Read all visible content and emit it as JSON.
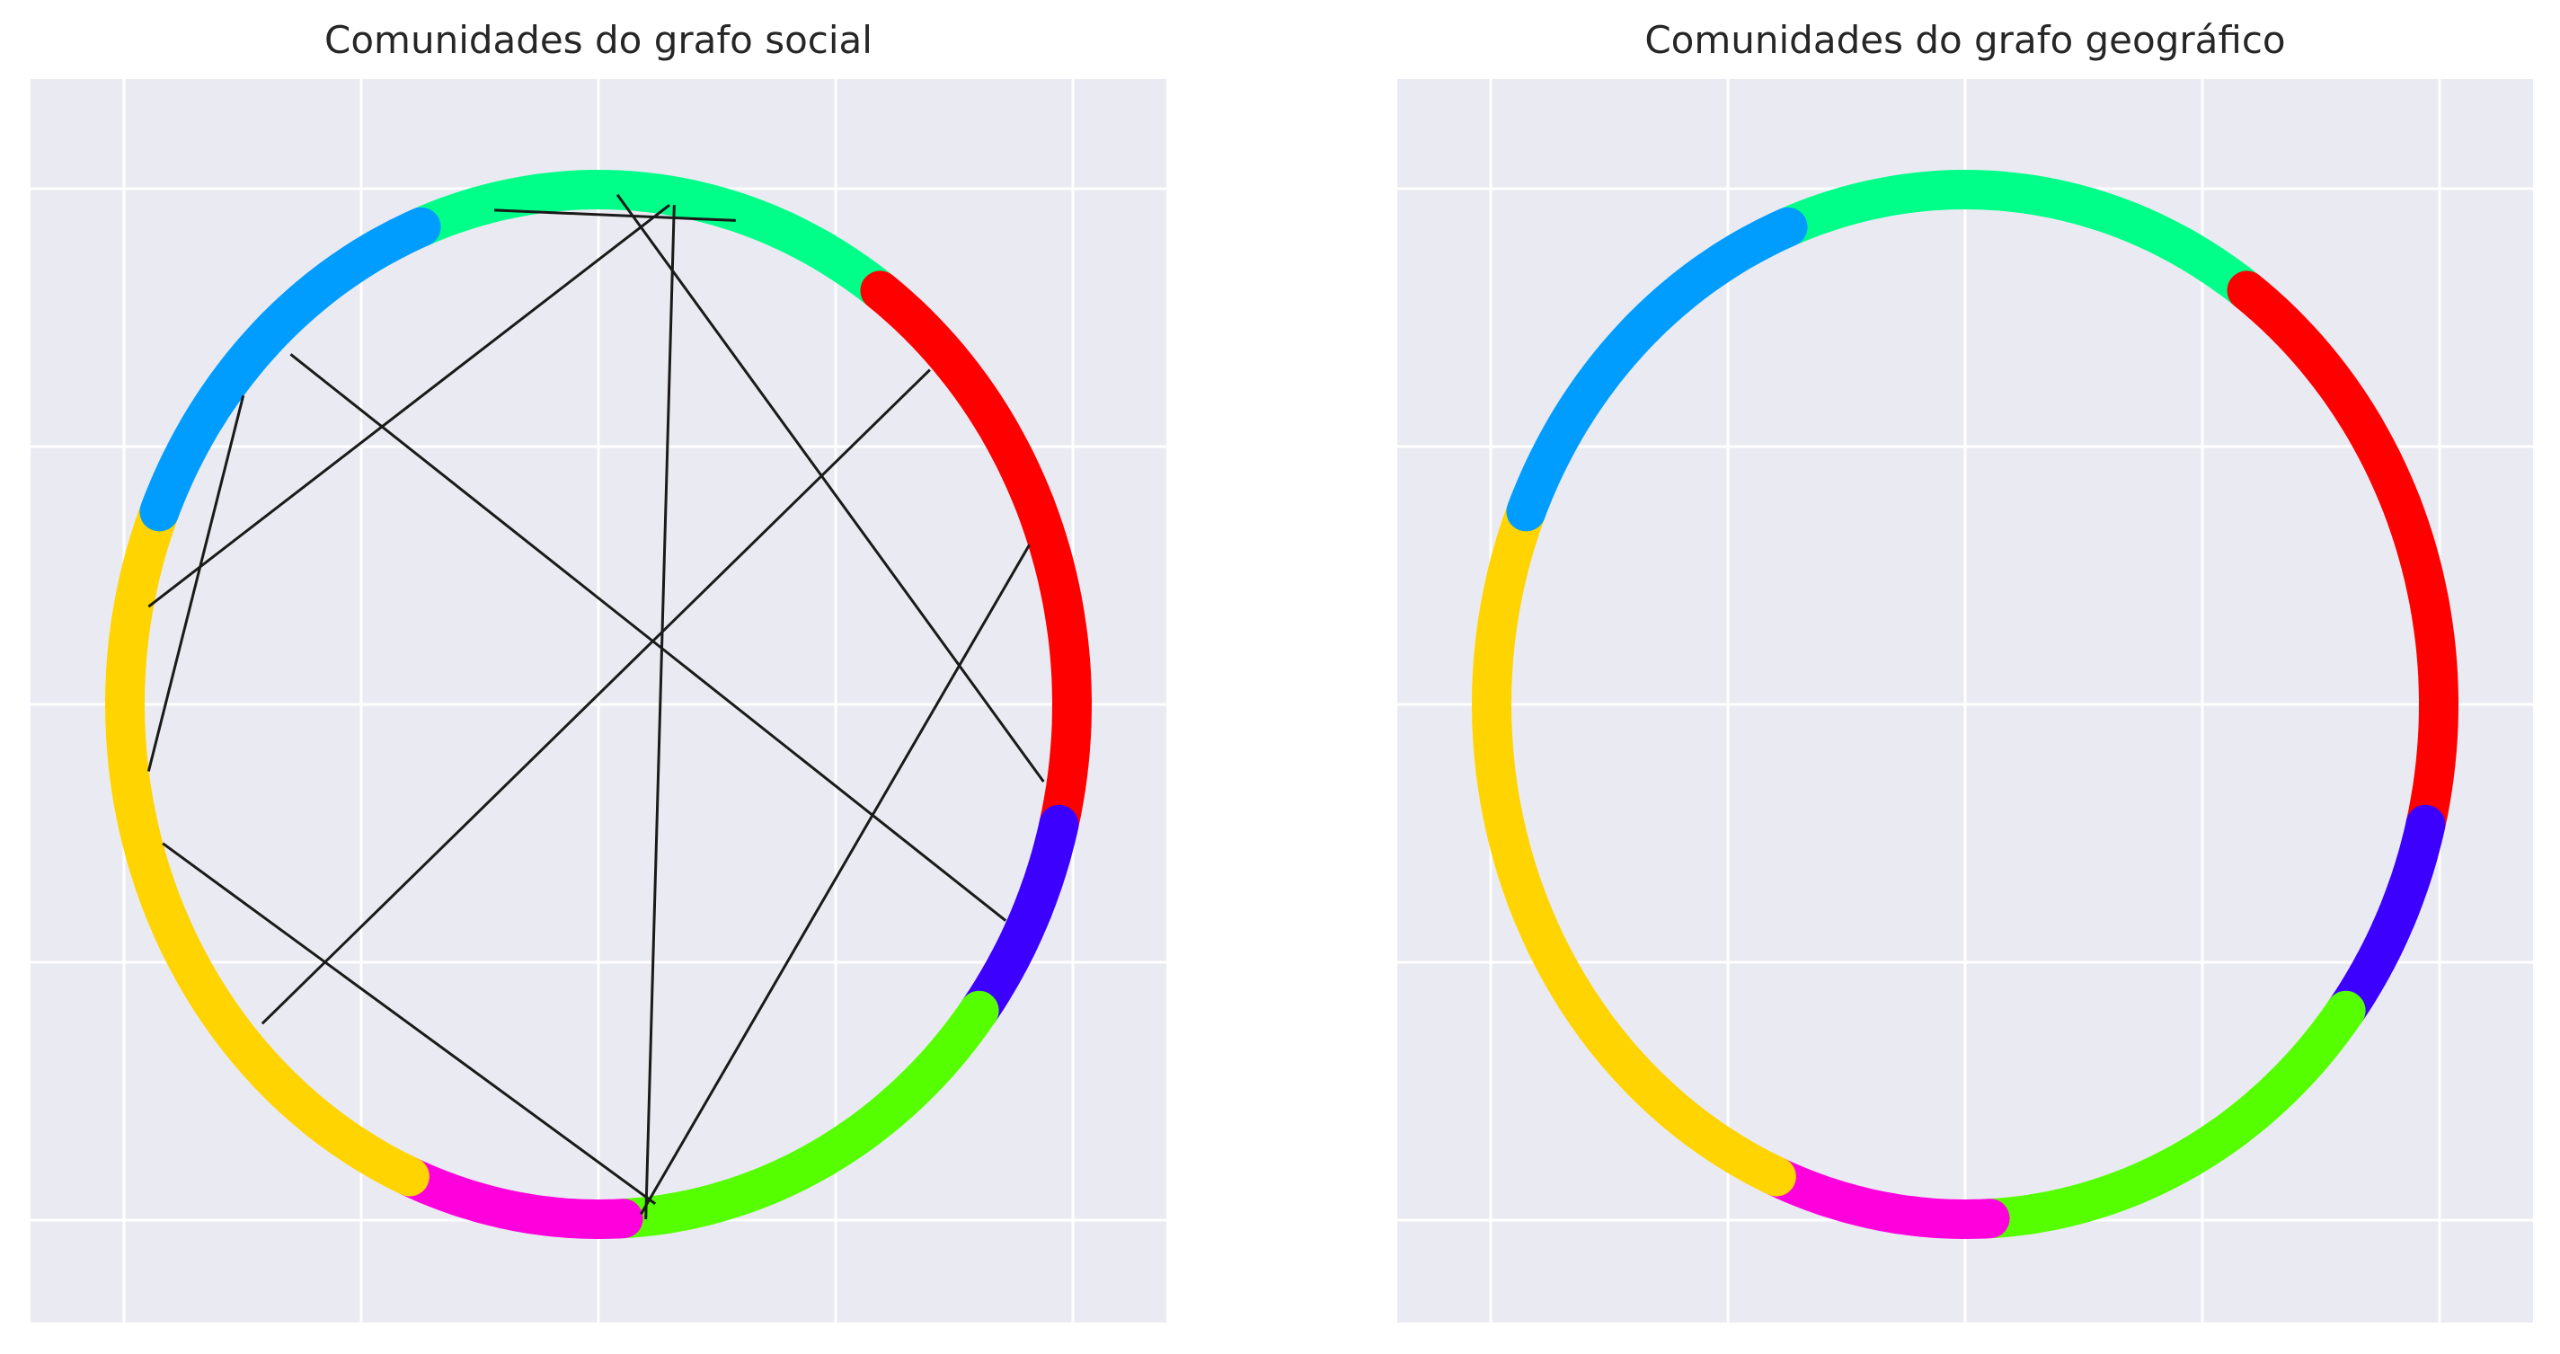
{
  "theme": {
    "axes_background": "#eaeaf2",
    "grid_color": "#ffffff",
    "edge_color": "#1a1a1a"
  },
  "communities": [
    {
      "color": "#00ff88"
    },
    {
      "color": "#ff0000"
    },
    {
      "color": "#3c00ff"
    },
    {
      "color": "#55ff00"
    },
    {
      "color": "#ff00dd"
    },
    {
      "color": "#ffd400"
    },
    {
      "color": "#009dff"
    }
  ],
  "charts": [
    {
      "title": "Comunidades do grafo social",
      "edges": [
        [
          [
            -0.22,
            0.96
          ],
          [
            0.29,
            0.94
          ]
        ],
        [
          [
            0.04,
            0.99
          ],
          [
            0.94,
            -0.15
          ]
        ],
        [
          [
            0.15,
            0.97
          ],
          [
            -0.95,
            0.19
          ]
        ],
        [
          [
            0.16,
            0.97
          ],
          [
            0.1,
            -1.0
          ]
        ],
        [
          [
            -0.65,
            0.68
          ],
          [
            0.86,
            -0.42
          ]
        ],
        [
          [
            -0.75,
            0.6
          ],
          [
            -0.95,
            -0.13
          ]
        ],
        [
          [
            0.7,
            0.65
          ],
          [
            -0.71,
            -0.62
          ]
        ],
        [
          [
            0.91,
            0.31
          ],
          [
            0.09,
            -0.99
          ]
        ],
        [
          [
            -0.92,
            -0.27
          ],
          [
            0.12,
            -0.97
          ]
        ]
      ]
    },
    {
      "title": "Comunidades do grafo geográfico",
      "edges": []
    }
  ]
}
